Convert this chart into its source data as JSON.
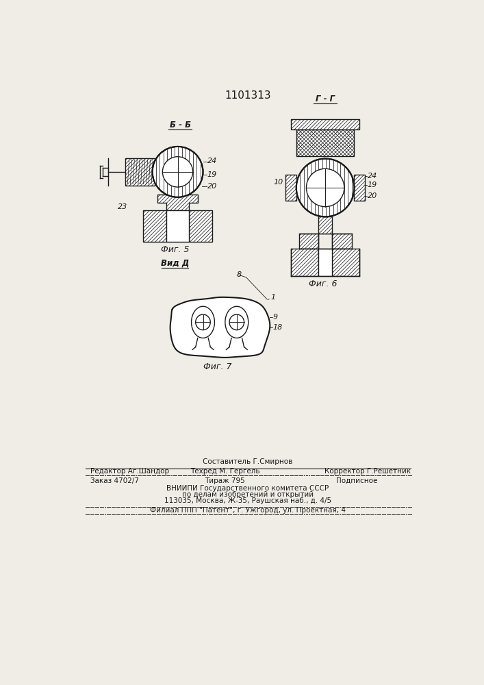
{
  "title": "1101313",
  "bg_color": "#f0ede6",
  "line_color": "#1a1a1a",
  "fig5_label": "Фиг. 5",
  "fig6_label": "Фиг. 6",
  "fig7_label": "Фиг. 7",
  "section_bb": "Б - Б",
  "section_gg": "Г - Г",
  "view_d": "Вид Д",
  "label_24_fig5": "24",
  "label_19_fig5": "19",
  "label_20_fig5": "20",
  "label_23_fig5": "23",
  "label_10_fig6": "10",
  "label_24_fig6": "24",
  "label_19_fig6": "19",
  "label_20_fig6": "20",
  "label_1_fig7": "1",
  "label_8_fig7": "8",
  "label_9_fig7": "9",
  "label_18_fig7": "18",
  "footer_line1_center": "Составитель Г.Смирнов",
  "footer_line2_left": "Редактор Аг.Шандор",
  "footer_line2_center": "Техред М. Гергель",
  "footer_line2_right": "Корректор Г.Решетник",
  "footer_line3_left": "Заказ 4702/7",
  "footer_line3_center": "Тираж 795",
  "footer_line3_right": "Подписное",
  "footer_line4": "ВНИИПИ Государственного комитета СССР",
  "footer_line5": "по делам изобретений и открытий",
  "footer_line6": "113035, Москва, Ж-35, Раушская наб., д. 4/5",
  "footer_line7": "Филиал ППП \"Патент\", г. Ужгород, ул. Проектная, 4"
}
